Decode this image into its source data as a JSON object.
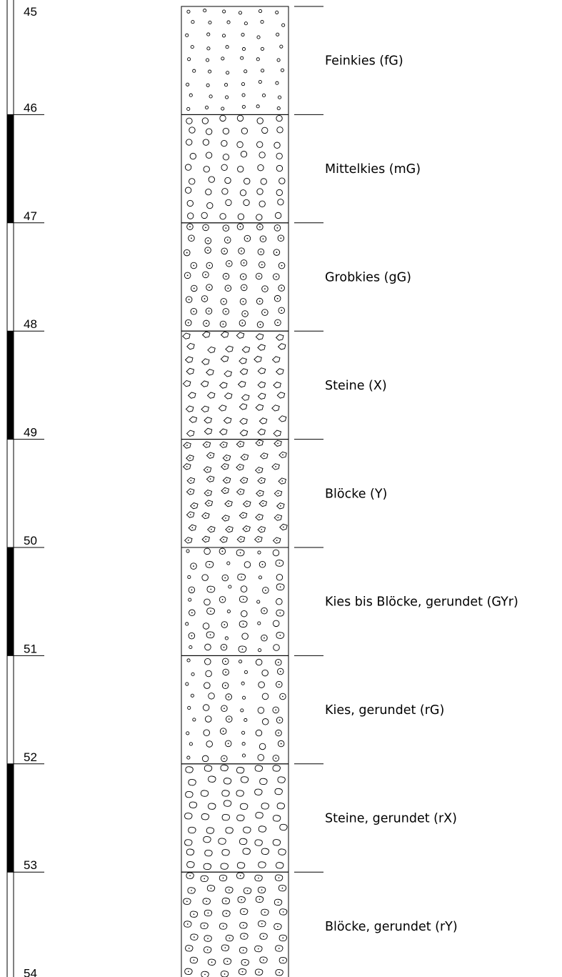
{
  "profile": {
    "depth_start": 45,
    "depth_end": 54,
    "depth_labels": [
      "45",
      "46",
      "47",
      "48",
      "49",
      "50",
      "51",
      "52",
      "53",
      "54"
    ],
    "scale_bar_black_intervals": [
      [
        46,
        47
      ],
      [
        48,
        49
      ],
      [
        50,
        51
      ],
      [
        52,
        53
      ]
    ],
    "layers": [
      {
        "from": 45,
        "to": 46,
        "label": "Feinkies (fG)",
        "pattern": "fine-gravel"
      },
      {
        "from": 46,
        "to": 47,
        "label": "Mittelkies (mG)",
        "pattern": "medium-gravel"
      },
      {
        "from": 47,
        "to": 48,
        "label": "Grobkies (gG)",
        "pattern": "coarse-gravel"
      },
      {
        "from": 48,
        "to": 49,
        "label": "Steine (X)",
        "pattern": "stones"
      },
      {
        "from": 49,
        "to": 50,
        "label": "Blöcke (Y)",
        "pattern": "blocks"
      },
      {
        "from": 50,
        "to": 51,
        "label": "Kies bis Blöcke, gerundet (GYr)",
        "pattern": "gravel-to-blocks-rounded"
      },
      {
        "from": 51,
        "to": 52,
        "label": "Kies, gerundet (rG)",
        "pattern": "gravel-rounded"
      },
      {
        "from": 52,
        "to": 53,
        "label": "Steine, gerundet (rX)",
        "pattern": "stones-rounded"
      },
      {
        "from": 53,
        "to": 54,
        "label": "Blöcke, gerundet (rY)",
        "pattern": "blocks-rounded"
      }
    ]
  }
}
